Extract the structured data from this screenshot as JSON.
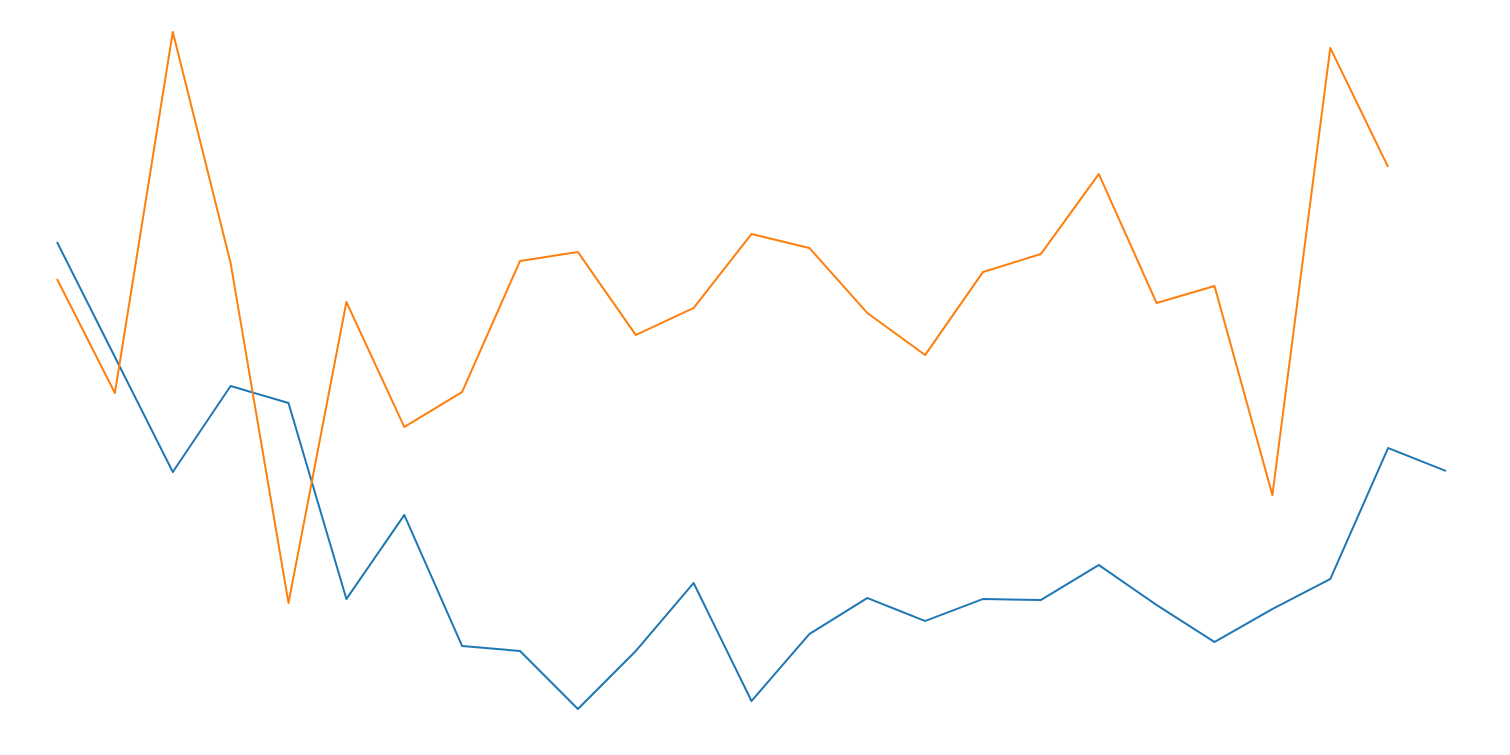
{
  "chart_data": {
    "type": "line",
    "series": [
      {
        "color": "#1f77b4",
        "values": [
          513,
          398,
          283,
          369,
          352,
          156,
          240,
          109,
          104,
          46,
          104,
          172,
          54,
          121,
          157,
          134,
          156,
          155,
          190,
          150,
          113,
          146,
          176,
          307,
          284
        ]
      },
      {
        "color": "#ff7f0e",
        "values": [
          476,
          362,
          723,
          492,
          152,
          453,
          328,
          363,
          494,
          503,
          420,
          447,
          521,
          507,
          442,
          400,
          483,
          501,
          581,
          452,
          469,
          260,
          707,
          588,
          null
        ]
      }
    ],
    "ylim": [
      0,
      755
    ]
  }
}
